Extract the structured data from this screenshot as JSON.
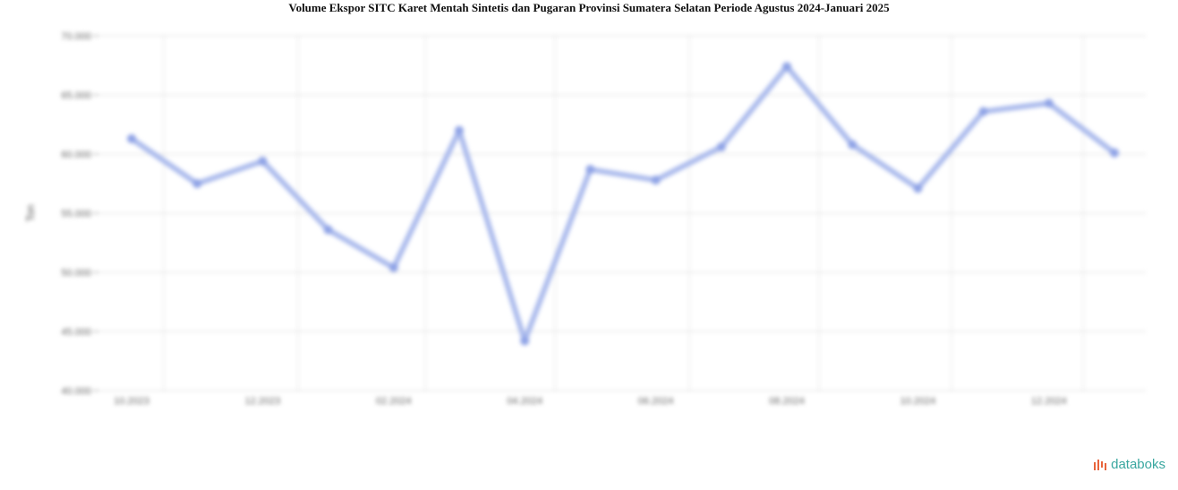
{
  "chart_data": {
    "type": "line",
    "title": "Volume Ekspor SITC Karet Mentah Sintetis dan Pugaran Provinsi Sumatera Selatan Periode Agustus 2024-Januari 2025",
    "xlabel": "",
    "ylabel": "Ton",
    "ylim": [
      40000,
      70000
    ],
    "yticks": [
      40000,
      45000,
      50000,
      55000,
      60000,
      65000,
      70000
    ],
    "ytick_labels": [
      "40.000",
      "45.000",
      "50.000",
      "55.000",
      "60.000",
      "65.000",
      "70.000"
    ],
    "x_tick_labels": [
      "10.2023",
      "12.2023",
      "02.2024",
      "04.2024",
      "06.2024",
      "08.2024",
      "10.2024",
      "12.2024"
    ],
    "x_tick_positions": [
      0,
      2,
      4,
      6,
      8,
      10,
      12,
      14
    ],
    "grid": true,
    "series": [
      {
        "name": "",
        "color": "#a9b9ec",
        "values": [
          61300,
          57500,
          59400,
          53600,
          50400,
          62000,
          44200,
          58700,
          57800,
          60600,
          67400,
          60800,
          57100,
          63600,
          64300,
          60100
        ]
      }
    ]
  },
  "brand": {
    "logo_text": "databoks",
    "logo_color": "#3aa7a0"
  }
}
